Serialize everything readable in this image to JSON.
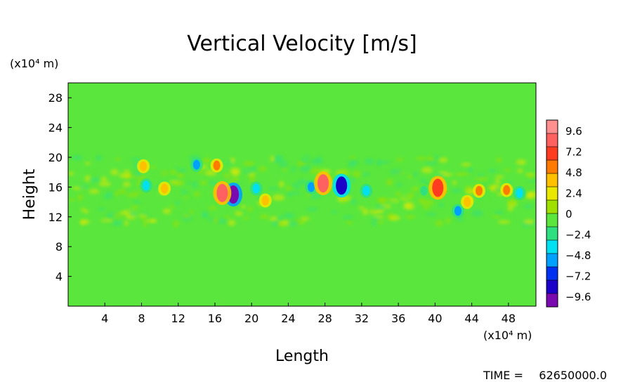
{
  "chart_data": {
    "type": "heatmap",
    "title": "Vertical Velocity [m/s]",
    "xlabel": "Length",
    "ylabel": "Height",
    "x_unit": "(x10⁴ m)",
    "y_unit": "(x10⁴ m)",
    "x_ticks": [
      "4",
      "8",
      "12",
      "16",
      "20",
      "24",
      "28",
      "32",
      "36",
      "40",
      "44",
      "48"
    ],
    "y_ticks": [
      "4",
      "8",
      "12",
      "16",
      "20",
      "24",
      "28"
    ],
    "xlim": [
      0,
      51
    ],
    "ylim": [
      0,
      30
    ],
    "colorbar_labels": [
      "9.6",
      "7.2",
      "4.8",
      "2.4",
      "0",
      "-2.4",
      "-4.8",
      "-7.2",
      "-9.6"
    ],
    "colorbar_range": [
      -10.8,
      10.8
    ],
    "colorbar_colors": [
      "#7a0ab0",
      "#1a00c8",
      "#0030f0",
      "#00a0ff",
      "#00e0f0",
      "#30e080",
      "#5ae63c",
      "#a0e000",
      "#e8e800",
      "#ffc000",
      "#ff7a00",
      "#ff3c20",
      "#ff6060",
      "#ff9090"
    ],
    "background_value": 0,
    "features": [
      {
        "x": 18.0,
        "y": 15.0,
        "value": -9.6
      },
      {
        "x": 16.8,
        "y": 15.2,
        "value": 8.0
      },
      {
        "x": 16.2,
        "y": 18.9,
        "value": 6.0
      },
      {
        "x": 14.0,
        "y": 19.0,
        "value": -5.0
      },
      {
        "x": 8.2,
        "y": 18.8,
        "value": 4.0
      },
      {
        "x": 8.5,
        "y": 16.2,
        "value": -4.5
      },
      {
        "x": 10.5,
        "y": 15.8,
        "value": 4.5
      },
      {
        "x": 20.5,
        "y": 15.8,
        "value": -4.0
      },
      {
        "x": 21.5,
        "y": 14.2,
        "value": 3.5
      },
      {
        "x": 26.5,
        "y": 16.0,
        "value": -5.5
      },
      {
        "x": 27.8,
        "y": 16.5,
        "value": 8.0
      },
      {
        "x": 29.8,
        "y": 16.2,
        "value": -8.5
      },
      {
        "x": 32.5,
        "y": 15.5,
        "value": -3.5
      },
      {
        "x": 38.8,
        "y": 15.5,
        "value": -3.0
      },
      {
        "x": 40.3,
        "y": 15.9,
        "value": 7.0
      },
      {
        "x": 42.5,
        "y": 12.8,
        "value": -5.5
      },
      {
        "x": 43.5,
        "y": 14.0,
        "value": 4.5
      },
      {
        "x": 44.8,
        "y": 15.5,
        "value": 5.0
      },
      {
        "x": 47.8,
        "y": 15.6,
        "value": 5.5
      },
      {
        "x": 49.2,
        "y": 15.2,
        "value": -4.0
      }
    ],
    "grid": false
  },
  "time_label": "TIME =",
  "time_value": "62650000.0"
}
